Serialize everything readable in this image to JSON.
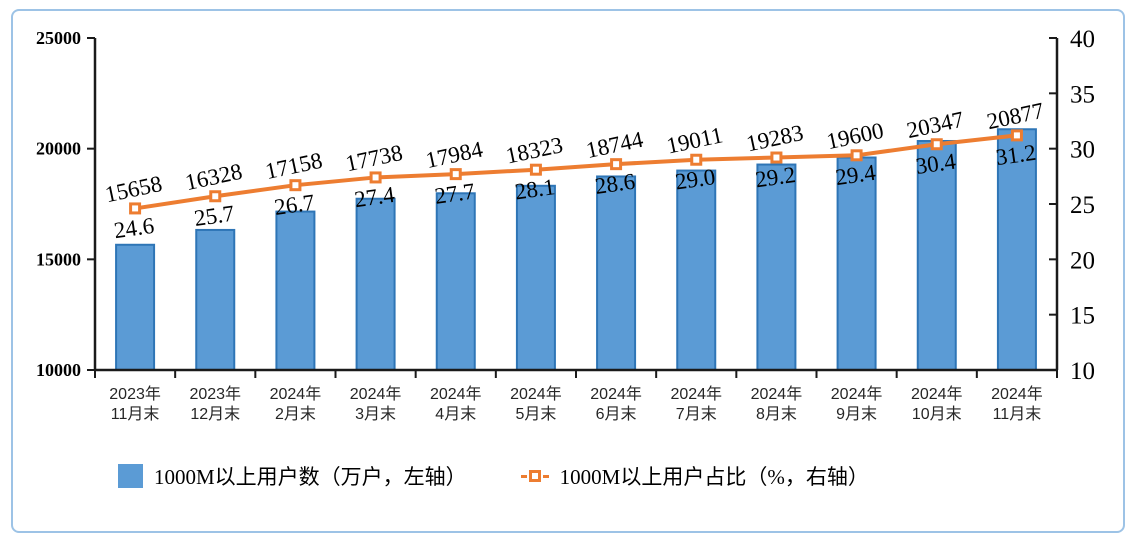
{
  "chart_data": {
    "type": "bar+line",
    "title": "",
    "xlabel": "",
    "ylabel_left": "",
    "ylabel_right": "",
    "grid": false,
    "legend_position": "bottom",
    "categories": [
      [
        "2023年",
        "11月末"
      ],
      [
        "2023年",
        "12月末"
      ],
      [
        "2024年",
        "2月末"
      ],
      [
        "2024年",
        "3月末"
      ],
      [
        "2024年",
        "4月末"
      ],
      [
        "2024年",
        "5月末"
      ],
      [
        "2024年",
        "6月末"
      ],
      [
        "2024年",
        "7月末"
      ],
      [
        "2024年",
        "8月末"
      ],
      [
        "2024年",
        "9月末"
      ],
      [
        "2024年",
        "10月末"
      ],
      [
        "2024年",
        "11月末"
      ]
    ],
    "series": [
      {
        "name": "1000M以上用户数（万户，左轴）",
        "type": "bar",
        "axis": "left",
        "values": [
          15658,
          16328,
          17158,
          17738,
          17984,
          18323,
          18744,
          19011,
          19283,
          19600,
          20347,
          20877
        ]
      },
      {
        "name": "1000M以上用户占比（%，右轴）",
        "type": "line",
        "axis": "right",
        "values": [
          24.6,
          25.7,
          26.7,
          27.4,
          27.7,
          28.1,
          28.6,
          29.0,
          29.2,
          29.4,
          30.4,
          31.2
        ]
      }
    ],
    "axes": {
      "left": {
        "min": 10000,
        "max": 25000,
        "ticks": [
          10000,
          15000,
          20000,
          25000
        ]
      },
      "right": {
        "min": 10,
        "max": 40,
        "ticks": [
          10,
          15,
          20,
          25,
          30,
          35,
          40
        ]
      }
    },
    "colors": {
      "bar_fill": "#5B9BD5",
      "bar_border": "#2E75B6",
      "line": "#ED7D31",
      "marker_fill": "#FFFFFF",
      "axis": "#1a1a1a",
      "frame_border": "#9DC3E6",
      "text": "#000000",
      "xtick_text": "#262626"
    }
  }
}
